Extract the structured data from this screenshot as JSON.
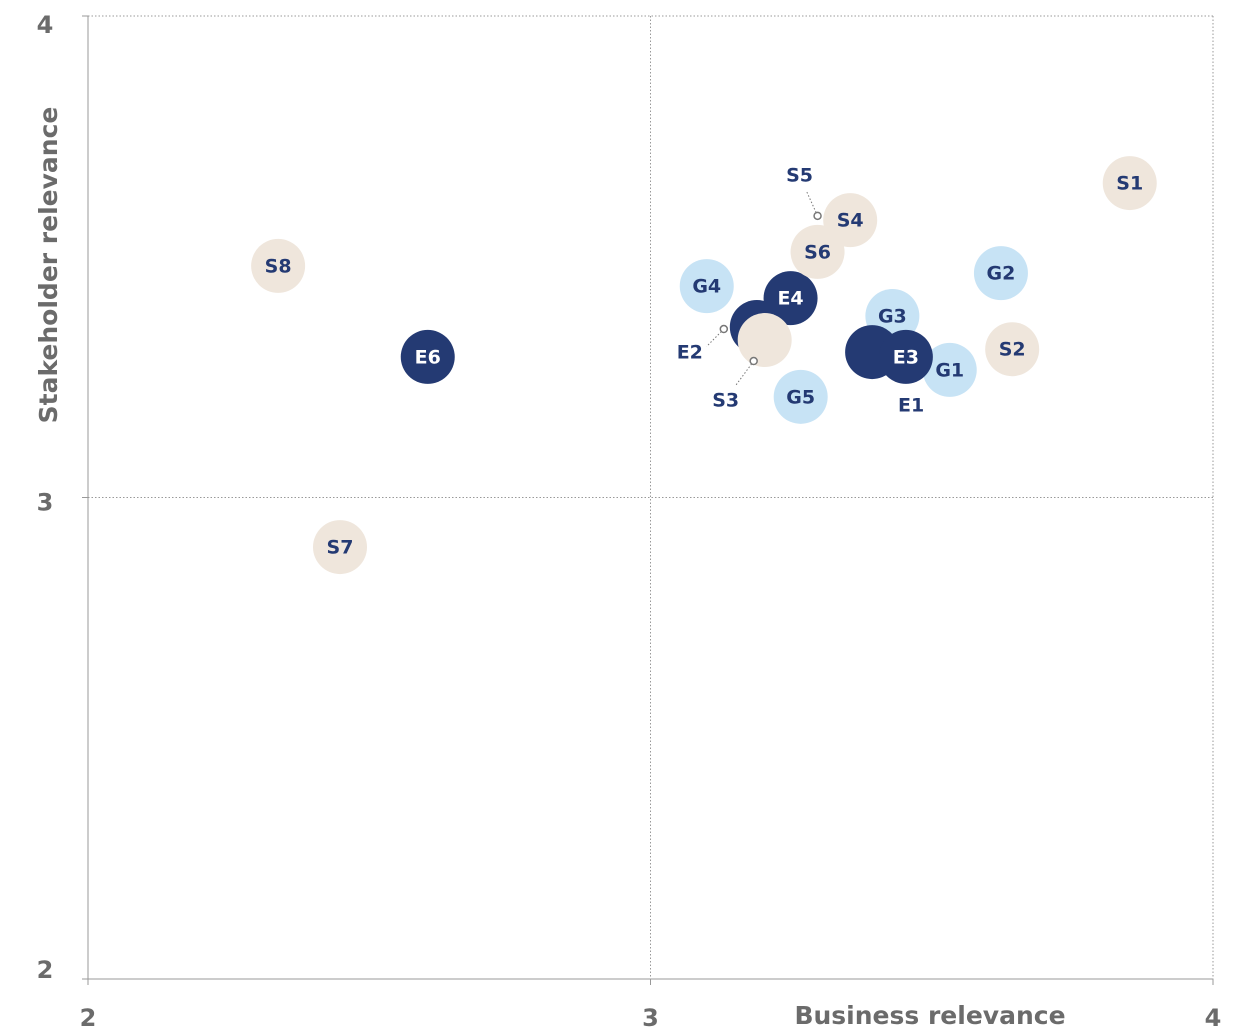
{
  "chart_data": {
    "type": "scatter",
    "xlabel": "Business relevance",
    "ylabel": "Stakeholder relevance",
    "xlim": [
      2,
      4
    ],
    "ylim": [
      2,
      4
    ],
    "xticks": [
      2,
      3,
      4
    ],
    "yticks": [
      2,
      3,
      4
    ],
    "grid": true,
    "series": [
      {
        "color": "#c7e3f5",
        "labels": [
          "G1",
          "G2",
          "G3",
          "G4",
          "G5"
        ],
        "x": [
          3.532,
          3.623,
          3.43,
          3.1,
          3.267
        ],
        "values": [
          3.265,
          3.466,
          3.377,
          3.439,
          3.209
        ]
      },
      {
        "color": "#243a73",
        "labels": [
          "E1",
          "E2",
          "E3",
          "E4",
          "E6"
        ],
        "x": [
          3.394,
          3.189,
          3.454,
          3.249,
          2.604
        ],
        "values": [
          3.302,
          3.354,
          3.292,
          3.414,
          3.292
        ]
      },
      {
        "color": "#efe6dc",
        "labels": [
          "S1",
          "S2",
          "S3",
          "S4",
          "S5",
          "S6",
          "S7",
          "S8"
        ],
        "x": [
          3.852,
          3.643,
          3.203,
          3.355,
          3.297,
          3.297,
          2.448,
          2.338
        ],
        "values": [
          3.653,
          3.308,
          3.327,
          3.576,
          3.585,
          3.51,
          2.897,
          3.481
        ]
      }
    ]
  }
}
